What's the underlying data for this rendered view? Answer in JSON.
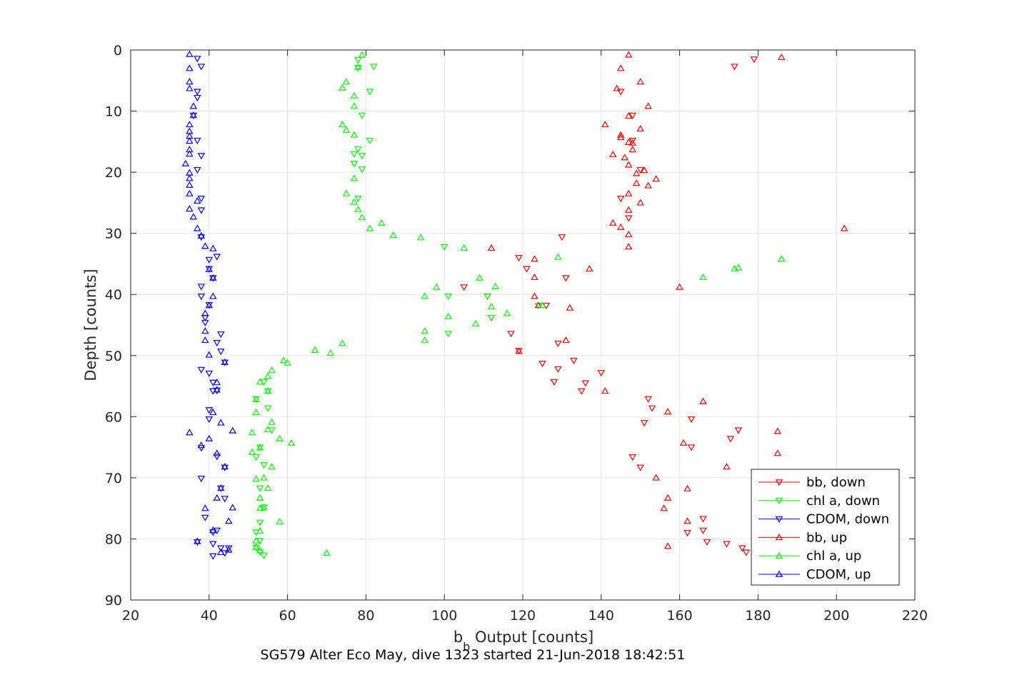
{
  "chart_data": {
    "type": "scatter",
    "xlabel_main": "b",
    "xlabel_sub": "b",
    "xlabel_rest": " Output [counts]",
    "ylabel": "Depth [counts]",
    "title": "SG579 Alter Eco May, dive 1323 started 21-Jun-2018 18:42:51",
    "xlim": [
      20,
      220
    ],
    "ylim": [
      0,
      90
    ],
    "y_reversed": true,
    "grid": true,
    "legend_position": "bottom-right",
    "xticks": [
      20,
      40,
      60,
      80,
      100,
      120,
      140,
      160,
      180,
      200,
      220
    ],
    "yticks": [
      0,
      10,
      20,
      30,
      40,
      50,
      60,
      70,
      80,
      90
    ],
    "series": [
      {
        "name": "bb, down",
        "color": "#ff0000",
        "marker": "triangle-down",
        "points": [
          [
            179,
            1.5
          ],
          [
            174,
            2.7
          ],
          [
            145,
            6.8
          ],
          [
            148,
            10.7
          ],
          [
            148,
            14.8
          ],
          [
            150,
            19.6
          ],
          [
            145,
            24.3
          ],
          [
            147,
            27.5
          ],
          [
            130,
            30.6
          ],
          [
            119,
            34.0
          ],
          [
            121,
            35.8
          ],
          [
            131,
            37.3
          ],
          [
            105,
            38.8
          ],
          [
            111,
            40.3
          ],
          [
            126,
            41.8
          ],
          [
            112,
            43.8
          ],
          [
            117,
            46.4
          ],
          [
            129,
            48.0
          ],
          [
            119,
            49.2
          ],
          [
            125,
            51.3
          ],
          [
            133,
            50.8
          ],
          [
            129,
            52.2
          ],
          [
            140,
            52.8
          ],
          [
            128,
            54.3
          ],
          [
            136,
            54.5
          ],
          [
            135,
            55.8
          ],
          [
            152,
            57.1
          ],
          [
            153,
            58.6
          ],
          [
            163,
            60.4
          ],
          [
            151,
            61.0
          ],
          [
            175,
            62.2
          ],
          [
            173,
            63.6
          ],
          [
            163,
            65.0
          ],
          [
            148,
            66.6
          ],
          [
            150,
            68.3
          ],
          [
            166,
            76.7
          ],
          [
            162,
            79.0
          ],
          [
            166,
            78.6
          ],
          [
            167,
            80.5
          ],
          [
            172,
            80.8
          ],
          [
            176,
            81.5
          ],
          [
            177,
            82.2
          ]
        ]
      },
      {
        "name": "chl a, down",
        "color": "#00ff00",
        "marker": "triangle-down",
        "points": [
          [
            78,
            1.6
          ],
          [
            82,
            2.7
          ],
          [
            78,
            2.9
          ],
          [
            81,
            6.8
          ],
          [
            79,
            10.7
          ],
          [
            81,
            14.8
          ],
          [
            78,
            16.2
          ],
          [
            77,
            17.0
          ],
          [
            79,
            17.3
          ],
          [
            77,
            18.6
          ],
          [
            79,
            19.5
          ],
          [
            78,
            24.3
          ],
          [
            100,
            32.2
          ],
          [
            101,
            40.3
          ],
          [
            101,
            46.4
          ],
          [
            112,
            43.8
          ],
          [
            111,
            40.3
          ],
          [
            124,
            41.8
          ],
          [
            54,
            54.3
          ],
          [
            55,
            55.8
          ],
          [
            52,
            57.1
          ],
          [
            55,
            58.6
          ],
          [
            56,
            62.2
          ],
          [
            53,
            65.0
          ],
          [
            52,
            66.6
          ],
          [
            54,
            67.9
          ],
          [
            53,
            71.7
          ],
          [
            54,
            74.8
          ],
          [
            53,
            77.3
          ],
          [
            52,
            78.9
          ],
          [
            53,
            80.3
          ],
          [
            52,
            81.4
          ],
          [
            53,
            82.2
          ],
          [
            54,
            82.7
          ]
        ]
      },
      {
        "name": "CDOM, down",
        "color": "#0000ff",
        "marker": "triangle-down",
        "points": [
          [
            37,
            1.4
          ],
          [
            38,
            2.7
          ],
          [
            37,
            6.8
          ],
          [
            37,
            7.8
          ],
          [
            36,
            10.7
          ],
          [
            37,
            14.8
          ],
          [
            38,
            17.3
          ],
          [
            37,
            19.6
          ],
          [
            38,
            24.3
          ],
          [
            38,
            26.2
          ],
          [
            38,
            30.6
          ],
          [
            42,
            33.8
          ],
          [
            40,
            34.3
          ],
          [
            40,
            35.8
          ],
          [
            41,
            37.3
          ],
          [
            38,
            38.7
          ],
          [
            38,
            40.3
          ],
          [
            40,
            41.7
          ],
          [
            39,
            43.8
          ],
          [
            39,
            44.6
          ],
          [
            43,
            46.5
          ],
          [
            42,
            47.9
          ],
          [
            43,
            49.3
          ],
          [
            44,
            51.1
          ],
          [
            38,
            52.3
          ],
          [
            40,
            52.9
          ],
          [
            41,
            54.4
          ],
          [
            42,
            55.7
          ],
          [
            41,
            55.8
          ],
          [
            40,
            58.9
          ],
          [
            40,
            60.4
          ],
          [
            38,
            65.1
          ],
          [
            42,
            66.5
          ],
          [
            44,
            68.3
          ],
          [
            43,
            71.7
          ],
          [
            44,
            73.4
          ],
          [
            38,
            70.1
          ],
          [
            39,
            76.5
          ],
          [
            42,
            78.6
          ],
          [
            41,
            78.9
          ],
          [
            37,
            80.5
          ],
          [
            41,
            80.8
          ],
          [
            43,
            81.5
          ],
          [
            45,
            81.5
          ],
          [
            44,
            82.3
          ],
          [
            41,
            82.8
          ]
        ]
      },
      {
        "name": "bb, up",
        "color": "#ff0000",
        "marker": "triangle-up",
        "points": [
          [
            186,
            1.2
          ],
          [
            147,
            0.8
          ],
          [
            145,
            3.0
          ],
          [
            150,
            5.2
          ],
          [
            144,
            6.3
          ],
          [
            152,
            9.2
          ],
          [
            141,
            12.2
          ],
          [
            147,
            10.8
          ],
          [
            150,
            12.9
          ],
          [
            145,
            13.9
          ],
          [
            145,
            14.3
          ],
          [
            147,
            15.1
          ],
          [
            148,
            15.2
          ],
          [
            143,
            17.1
          ],
          [
            148,
            16.3
          ],
          [
            146,
            17.6
          ],
          [
            147,
            18.8
          ],
          [
            149,
            20.2
          ],
          [
            151,
            19.7
          ],
          [
            154,
            21.1
          ],
          [
            149,
            21.8
          ],
          [
            152,
            22.2
          ],
          [
            147,
            23.5
          ],
          [
            150,
            25.0
          ],
          [
            147,
            26.2
          ],
          [
            143,
            28.3
          ],
          [
            145,
            29.0
          ],
          [
            147,
            30.2
          ],
          [
            147,
            32.2
          ],
          [
            202,
            29.2
          ],
          [
            112,
            32.4
          ],
          [
            123,
            34.2
          ],
          [
            137,
            35.8
          ],
          [
            123,
            37.2
          ],
          [
            160,
            38.8
          ],
          [
            123,
            40.3
          ],
          [
            124,
            41.8
          ],
          [
            132,
            42.2
          ],
          [
            119,
            49.3
          ],
          [
            131,
            47.5
          ],
          [
            141,
            55.8
          ],
          [
            166,
            57.5
          ],
          [
            157,
            59.2
          ],
          [
            185,
            62.4
          ],
          [
            161,
            64.3
          ],
          [
            185,
            66.0
          ],
          [
            172,
            68.2
          ],
          [
            154,
            70.0
          ],
          [
            162,
            71.8
          ],
          [
            157,
            73.3
          ],
          [
            156,
            75.0
          ],
          [
            162,
            77.1
          ],
          [
            157,
            81.2
          ]
        ]
      },
      {
        "name": "chl a, up",
        "color": "#00ff00",
        "marker": "triangle-up",
        "points": [
          [
            79,
            0.8
          ],
          [
            78,
            2.8
          ],
          [
            75,
            5.2
          ],
          [
            74,
            6.2
          ],
          [
            77,
            7.5
          ],
          [
            77,
            9.2
          ],
          [
            74,
            12.2
          ],
          [
            75,
            13.1
          ],
          [
            77,
            13.9
          ],
          [
            77,
            21.0
          ],
          [
            75,
            23.5
          ],
          [
            77,
            24.9
          ],
          [
            78,
            26.1
          ],
          [
            79,
            27.4
          ],
          [
            84,
            28.3
          ],
          [
            81,
            29.2
          ],
          [
            87,
            30.3
          ],
          [
            94,
            30.7
          ],
          [
            105,
            32.4
          ],
          [
            129,
            33.9
          ],
          [
            186,
            34.2
          ],
          [
            175,
            35.6
          ],
          [
            174,
            35.8
          ],
          [
            166,
            37.2
          ],
          [
            109,
            37.3
          ],
          [
            113,
            38.7
          ],
          [
            98,
            38.8
          ],
          [
            95,
            40.3
          ],
          [
            125,
            41.8
          ],
          [
            112,
            42.0
          ],
          [
            116,
            43.1
          ],
          [
            101,
            43.6
          ],
          [
            108,
            44.8
          ],
          [
            95,
            46.0
          ],
          [
            95,
            47.5
          ],
          [
            74,
            48.0
          ],
          [
            67,
            49.1
          ],
          [
            71,
            49.6
          ],
          [
            59,
            50.8
          ],
          [
            60,
            51.2
          ],
          [
            56,
            52.4
          ],
          [
            55,
            53.4
          ],
          [
            53,
            54.3
          ],
          [
            55,
            55.8
          ],
          [
            52,
            57.2
          ],
          [
            52,
            59.3
          ],
          [
            56,
            60.9
          ],
          [
            55,
            62.1
          ],
          [
            51,
            62.6
          ],
          [
            58,
            63.6
          ],
          [
            61,
            64.3
          ],
          [
            53,
            65.1
          ],
          [
            51,
            65.8
          ],
          [
            56,
            68.2
          ],
          [
            54,
            70.0
          ],
          [
            52,
            70.2
          ],
          [
            55,
            71.7
          ],
          [
            53,
            73.3
          ],
          [
            54,
            74.9
          ],
          [
            53,
            75.0
          ],
          [
            58,
            77.2
          ],
          [
            53,
            78.7
          ],
          [
            52,
            80.3
          ],
          [
            52,
            81.4
          ],
          [
            53,
            81.9
          ],
          [
            70,
            82.3
          ]
        ]
      },
      {
        "name": "CDOM, up",
        "color": "#0000ff",
        "marker": "triangle-up",
        "points": [
          [
            35,
            0.7
          ],
          [
            35,
            3.0
          ],
          [
            35,
            5.2
          ],
          [
            35,
            6.3
          ],
          [
            36,
            9.2
          ],
          [
            36,
            10.7
          ],
          [
            35,
            12.2
          ],
          [
            35,
            13.3
          ],
          [
            35,
            14.1
          ],
          [
            35,
            14.9
          ],
          [
            35,
            16.3
          ],
          [
            35,
            17.0
          ],
          [
            34,
            18.6
          ],
          [
            35,
            20.1
          ],
          [
            35,
            21.0
          ],
          [
            35,
            22.1
          ],
          [
            35,
            23.5
          ],
          [
            37,
            24.7
          ],
          [
            35,
            26.0
          ],
          [
            36,
            27.3
          ],
          [
            37,
            29.2
          ],
          [
            38,
            30.4
          ],
          [
            39,
            32.1
          ],
          [
            41,
            32.5
          ],
          [
            40,
            35.9
          ],
          [
            41,
            37.3
          ],
          [
            41,
            40.3
          ],
          [
            40,
            41.8
          ],
          [
            39,
            43.1
          ],
          [
            39,
            46.0
          ],
          [
            39,
            47.5
          ],
          [
            40,
            49.9
          ],
          [
            44,
            51.1
          ],
          [
            42,
            54.4
          ],
          [
            42,
            55.6
          ],
          [
            41,
            59.3
          ],
          [
            43,
            61.0
          ],
          [
            46,
            62.3
          ],
          [
            35,
            62.6
          ],
          [
            40,
            63.6
          ],
          [
            38,
            64.7
          ],
          [
            42,
            66.0
          ],
          [
            44,
            68.2
          ],
          [
            43,
            71.7
          ],
          [
            42,
            73.3
          ],
          [
            39,
            75.0
          ],
          [
            46,
            74.9
          ],
          [
            45,
            77.1
          ],
          [
            41,
            78.6
          ],
          [
            37,
            80.4
          ],
          [
            45,
            81.8
          ],
          [
            43,
            82.2
          ]
        ]
      }
    ]
  }
}
